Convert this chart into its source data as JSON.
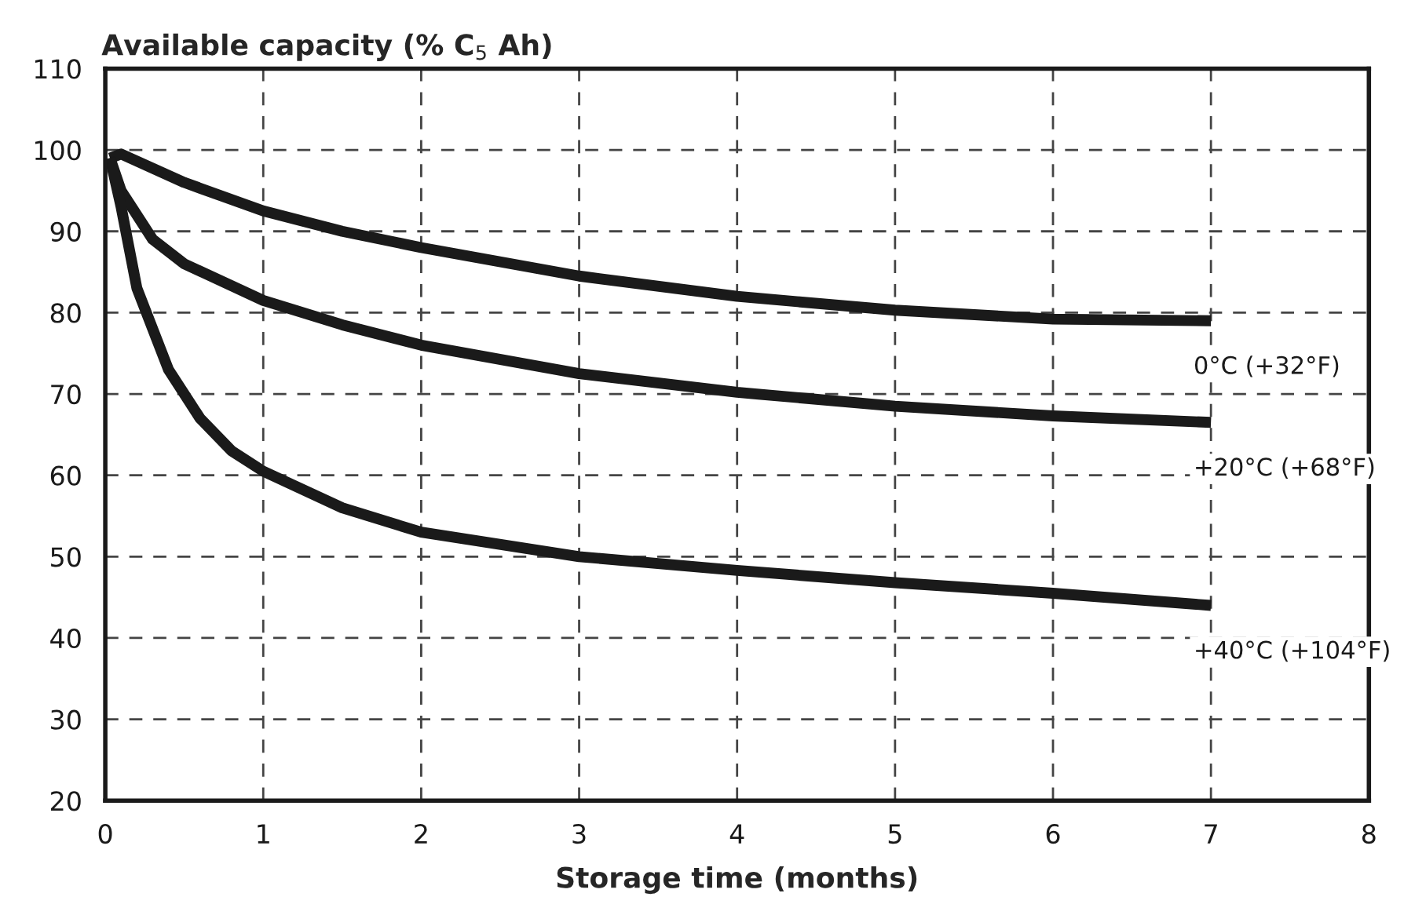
{
  "chart_data": {
    "type": "line",
    "xlabel": "Storage time (months)",
    "ylabel": "Available capacity (% C$_{5}$ Ah)",
    "xlim": [
      0,
      8
    ],
    "xticks": [
      0,
      1,
      2,
      3,
      4,
      5,
      6,
      7,
      8
    ],
    "ylim": [
      20,
      110
    ],
    "yticks": [
      20,
      30,
      40,
      50,
      60,
      70,
      80,
      90,
      100,
      110
    ],
    "grid": true,
    "legend": false,
    "marker": "none",
    "line_style": "solid",
    "series": [
      {
        "name": "0°C (+32°F)",
        "color": "#1a1a1a",
        "x": [
          0.03,
          0.1,
          0.5,
          1,
          1.5,
          2,
          3,
          4,
          5,
          6,
          7
        ],
        "values": [
          99,
          99.5,
          96,
          92.5,
          90,
          88,
          84.5,
          82,
          80.3,
          79.2,
          79
        ]
      },
      {
        "name": "+20°C (+68°F)",
        "color": "#1a1a1a",
        "x": [
          0.03,
          0.1,
          0.3,
          0.5,
          1,
          1.5,
          2,
          3,
          4,
          5,
          6,
          7
        ],
        "values": [
          99,
          95,
          89,
          86,
          81.5,
          78.5,
          76,
          72.5,
          70.2,
          68.5,
          67.3,
          66.5
        ]
      },
      {
        "name": "+40°C (+104°F)",
        "color": "#1a1a1a",
        "x": [
          0.03,
          0.1,
          0.2,
          0.4,
          0.6,
          0.8,
          1,
          1.5,
          2,
          3,
          4,
          5,
          6,
          7
        ],
        "values": [
          99,
          93,
          83,
          73,
          67,
          63,
          60.5,
          56,
          53,
          50,
          48.3,
          46.8,
          45.5,
          44
        ]
      }
    ]
  }
}
